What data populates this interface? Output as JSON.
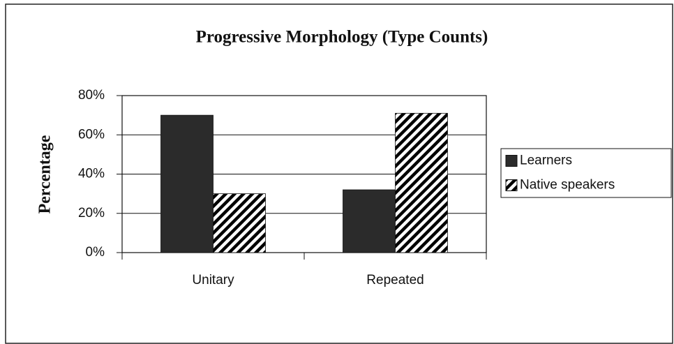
{
  "chart_data": {
    "type": "bar",
    "title": "Progressive Morphology (Type Counts)",
    "y_label": "Percentage",
    "categories": [
      "Unitary",
      "Repeated"
    ],
    "series": [
      {
        "name": "Learners",
        "color": "#2b2b2b",
        "values": [
          70,
          32
        ]
      },
      {
        "name": "Native speakers",
        "color": "#000000",
        "pattern": "hatch",
        "values": [
          30,
          71
        ]
      }
    ],
    "ylim": [
      0,
      80
    ],
    "yticks": [
      {
        "value": 0,
        "label": "0%"
      },
      {
        "value": 20,
        "label": "20%"
      },
      {
        "value": 40,
        "label": "40%"
      },
      {
        "value": 60,
        "label": "60%"
      },
      {
        "value": 80,
        "label": "80%"
      }
    ],
    "grid": true,
    "legend": "right"
  }
}
